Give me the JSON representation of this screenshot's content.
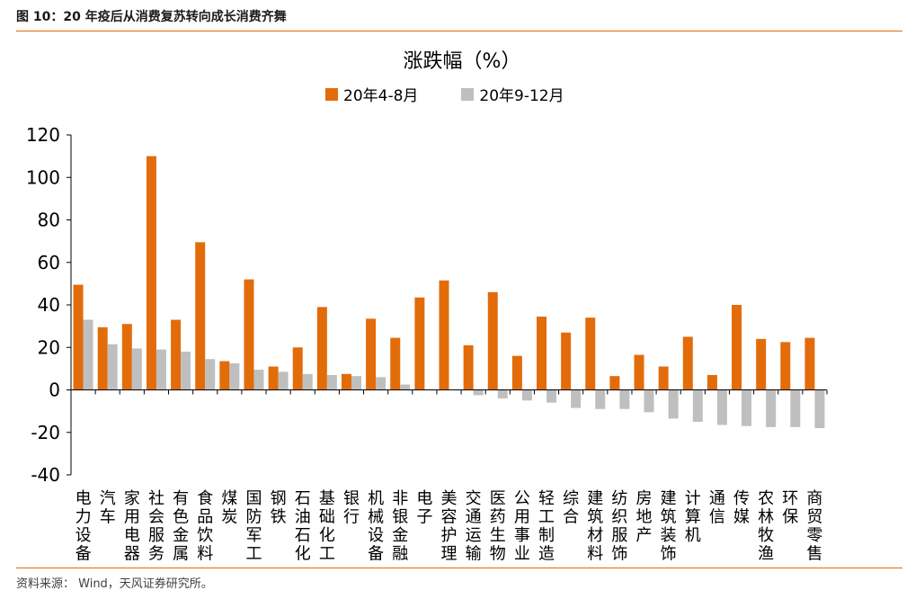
{
  "figure": {
    "header": "图 10：20 年疫后从消费复苏转向成长消费齐舞",
    "source": "资料来源： Wind，天风证券研究所。"
  },
  "chart_data": {
    "type": "bar",
    "title": "涨跌幅（%）",
    "xlabel": "",
    "ylabel": "",
    "ylim": [
      -40,
      120
    ],
    "yticks": [
      -40,
      -20,
      0,
      20,
      40,
      60,
      80,
      100,
      120
    ],
    "grid": false,
    "legend_position": "top-center",
    "categories": [
      "电力设备",
      "汽车",
      "家用电器",
      "社会服务",
      "有色金属",
      "食品饮料",
      "煤炭",
      "国防军工",
      "钢铁",
      "石油石化",
      "基础化工",
      "银行",
      "机械设备",
      "非银金融",
      "电子",
      "美容护理",
      "交通运输",
      "医药生物",
      "公用事业",
      "轻工制造",
      "综合",
      "建筑材料",
      "纺织服饰",
      "房地产",
      "建筑装饰",
      "计算机",
      "通信",
      "传媒",
      "农林牧渔",
      "环保",
      "商贸零售"
    ],
    "series": [
      {
        "name": "20年4-8月",
        "color": "#e36c0a",
        "values": [
          49.5,
          29.5,
          31,
          110,
          33,
          69.5,
          13.5,
          52,
          11,
          20,
          39,
          7.5,
          33.5,
          24.5,
          43.5,
          51.5,
          21,
          46,
          16,
          34.5,
          27,
          34,
          6.5,
          16.5,
          11,
          25,
          7,
          40,
          24,
          22.5,
          24.5
        ]
      },
      {
        "name": "20年9-12月",
        "color": "#bfbfbf",
        "values": [
          33,
          21.5,
          19.5,
          19,
          18,
          14.5,
          12.5,
          9.5,
          8.5,
          7.5,
          7,
          6.5,
          6,
          2.5,
          0.3,
          0.2,
          -2.5,
          -4,
          -5,
          -6,
          -8.5,
          -9,
          -9,
          -10.5,
          -13.5,
          -15,
          -16.5,
          -17,
          -17.5,
          -17.5,
          -18
        ]
      }
    ]
  }
}
